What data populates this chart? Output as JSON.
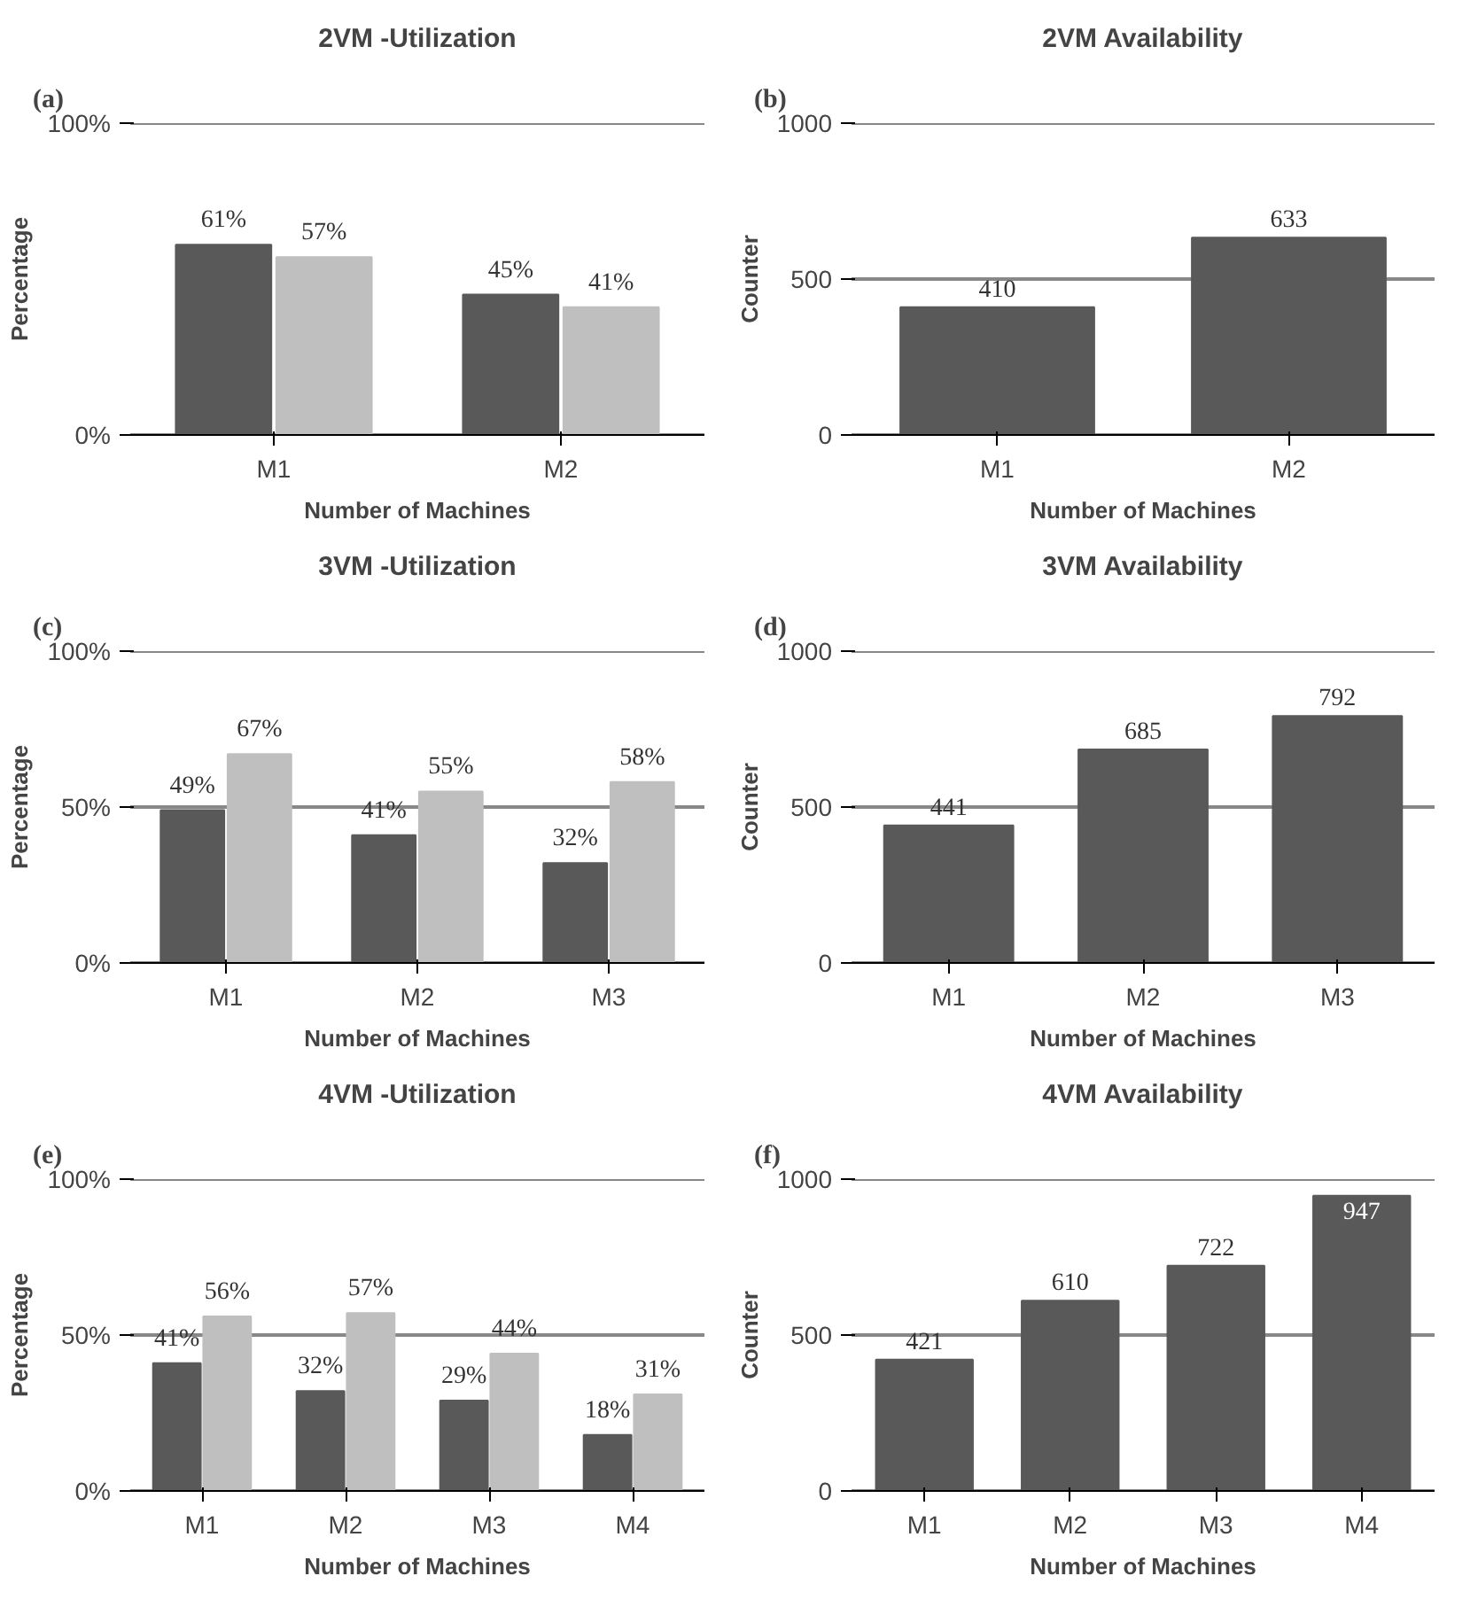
{
  "chart_data": [
    {
      "type": "bar",
      "title": "2VM -Utilization",
      "xlabel": "Number of Machines",
      "ylabel": "Percentage",
      "categories": [
        "M1",
        "M2"
      ],
      "annotations": [
        "(a)"
      ],
      "ylim": [
        0,
        100
      ],
      "yticks": [
        {
          "value": 0,
          "label": "0%"
        },
        {
          "value": 100,
          "label": "100%"
        }
      ],
      "grid": "y",
      "series": [
        {
          "color": "#595959",
          "values": [
            61,
            45
          ],
          "value_labels": [
            "61%",
            "45%"
          ]
        },
        {
          "color": "#bfbfbf",
          "values": [
            57,
            41
          ],
          "value_labels": [
            "57%",
            "41%"
          ]
        }
      ]
    },
    {
      "type": "bar",
      "title": "2VM Availability",
      "xlabel": "Number of Machines",
      "ylabel": "Counter",
      "categories": [
        "M1",
        "M2"
      ],
      "annotations": [
        "(b)"
      ],
      "ylim": [
        0,
        1000
      ],
      "yticks": [
        0,
        500,
        1000
      ],
      "grid": "y",
      "data_labels": true,
      "series": [
        {
          "color": "#595959",
          "values": [
            410,
            633
          ]
        }
      ]
    },
    {
      "type": "bar",
      "title": "3VM -Utilization",
      "xlabel": "Number of Machines",
      "ylabel": "Percentage",
      "categories": [
        "M1",
        "M2",
        "M3"
      ],
      "annotations": [
        "(c)"
      ],
      "ylim": [
        0,
        100
      ],
      "yticks": [
        {
          "value": 0,
          "label": "0%"
        },
        {
          "value": 50,
          "label": "50%"
        },
        {
          "value": 100,
          "label": "100%"
        }
      ],
      "grid": "y",
      "series": [
        {
          "color": "#595959",
          "values": [
            49,
            41,
            32
          ],
          "value_labels": [
            "49%",
            "41%",
            "32%"
          ]
        },
        {
          "color": "#bfbfbf",
          "values": [
            67,
            55,
            58
          ],
          "value_labels": [
            "67%",
            "55%",
            "58%"
          ]
        }
      ]
    },
    {
      "type": "bar",
      "title": "3VM Availability",
      "xlabel": "Number of Machines",
      "ylabel": "Counter",
      "categories": [
        "M1",
        "M2",
        "M3"
      ],
      "annotations": [
        "(d)"
      ],
      "ylim": [
        0,
        1000
      ],
      "yticks": [
        0,
        500,
        1000
      ],
      "grid": "y",
      "data_labels": true,
      "series": [
        {
          "color": "#595959",
          "values": [
            441,
            685,
            792
          ]
        }
      ]
    },
    {
      "type": "bar",
      "title": "4VM -Utilization",
      "xlabel": "Number of Machines",
      "ylabel": "Percentage",
      "categories": [
        "M1",
        "M2",
        "M3",
        "M4"
      ],
      "annotations": [
        "(e)"
      ],
      "ylim": [
        0,
        100
      ],
      "yticks": [
        {
          "value": 0,
          "label": "0%"
        },
        {
          "value": 50,
          "label": "50%"
        },
        {
          "value": 100,
          "label": "100%"
        }
      ],
      "grid": "y",
      "series": [
        {
          "color": "#595959",
          "values": [
            41,
            32,
            29,
            18
          ],
          "value_labels": [
            "41%",
            "32%",
            "29%",
            "18%"
          ]
        },
        {
          "color": "#bfbfbf",
          "values": [
            56,
            57,
            44,
            31
          ],
          "value_labels": [
            "56%",
            "57%",
            "44%",
            "31%"
          ]
        }
      ]
    },
    {
      "type": "bar",
      "title": "4VM Availability",
      "xlabel": "Number of Machines",
      "ylabel": "Counter",
      "categories": [
        "M1",
        "M2",
        "M3",
        "M4"
      ],
      "annotations": [
        "(f)"
      ],
      "ylim": [
        0,
        1000
      ],
      "yticks": [
        0,
        500,
        1000
      ],
      "grid": "y",
      "data_labels": true,
      "series": [
        {
          "color": "#595959",
          "values": [
            421,
            610,
            722,
            947
          ]
        }
      ]
    }
  ]
}
